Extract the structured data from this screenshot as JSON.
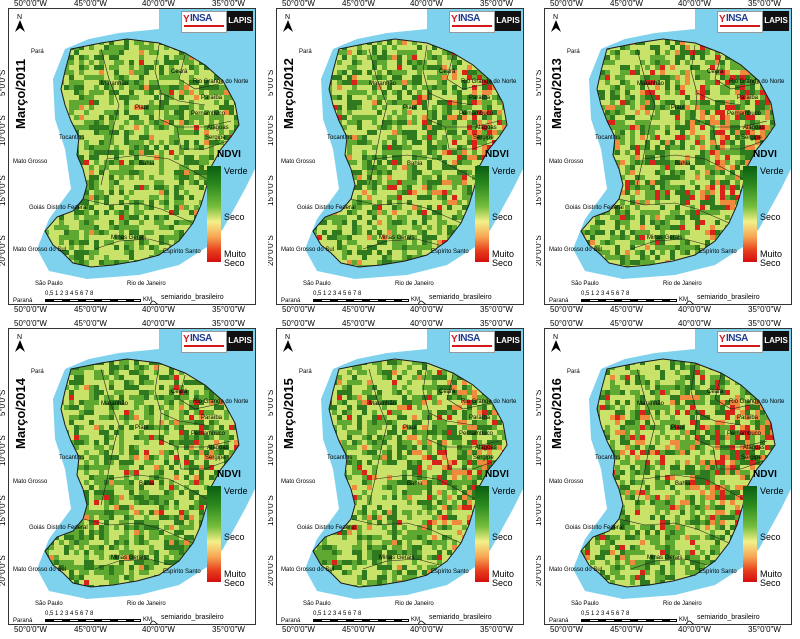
{
  "longitude_labels": [
    "50°0'0\"W",
    "45°0'0\"W",
    "40°0'0\"W",
    "35°0'0\"W"
  ],
  "latitude_labels": [
    "5°0'0\"S",
    "10°0'0\"S",
    "15°0'0\"S",
    "20°0'0\"S"
  ],
  "legend": {
    "title": "NDVI",
    "high": "Verde",
    "mid": "Seco",
    "low": "Muito Seco"
  },
  "scale": {
    "ticks": "0,5 1 2 3 4 5 6 7 8",
    "unit": "KM"
  },
  "semiarid_label": "semiarido_brasileiro",
  "logos": {
    "insa": "INSA",
    "lapis": "LAPIS"
  },
  "place_names": {
    "para": "Pará",
    "maranhao": "Maranhão",
    "ceara": "Ceará",
    "rio_grande_do_norte": "Rio Grande do Norte",
    "piaui": "Piauí",
    "paraiba": "Paraíba",
    "pernambuco": "Pernambuco",
    "alagoas": "Alagoas",
    "sergipe": "Sergipe",
    "tocantins": "Tocantins",
    "bahia": "Bahia",
    "mato_grosso": "Mato Grosso",
    "goias": "Goiás",
    "distrito_federal": "Distrito Federal",
    "minas_gerais": "Minas Gerais",
    "espirito_santo": "Espírito Santo",
    "mato_grosso_do_sul": "Mato Grosso do Sul",
    "sao_paulo": "São Paulo",
    "rio_de_janeiro": "Rio de Janeiro",
    "parana": "Paraná"
  },
  "panels": [
    {
      "title": "Março/2011",
      "dryness": 0.12
    },
    {
      "title": "Março/2012",
      "dryness": 0.45
    },
    {
      "title": "Março/2013",
      "dryness": 0.7
    },
    {
      "title": "Março/2014",
      "dryness": 0.3
    },
    {
      "title": "Março/2015",
      "dryness": 0.45
    },
    {
      "title": "Março/2016",
      "dryness": 0.65
    }
  ],
  "colors": {
    "ocean": "#7fd2ee",
    "land_outside": "#ffffff",
    "green_dark": "#2f7a1f",
    "green": "#5fa832",
    "light": "#c9e36a",
    "dry": "#f08a3c",
    "very_dry": "#d8231a"
  }
}
